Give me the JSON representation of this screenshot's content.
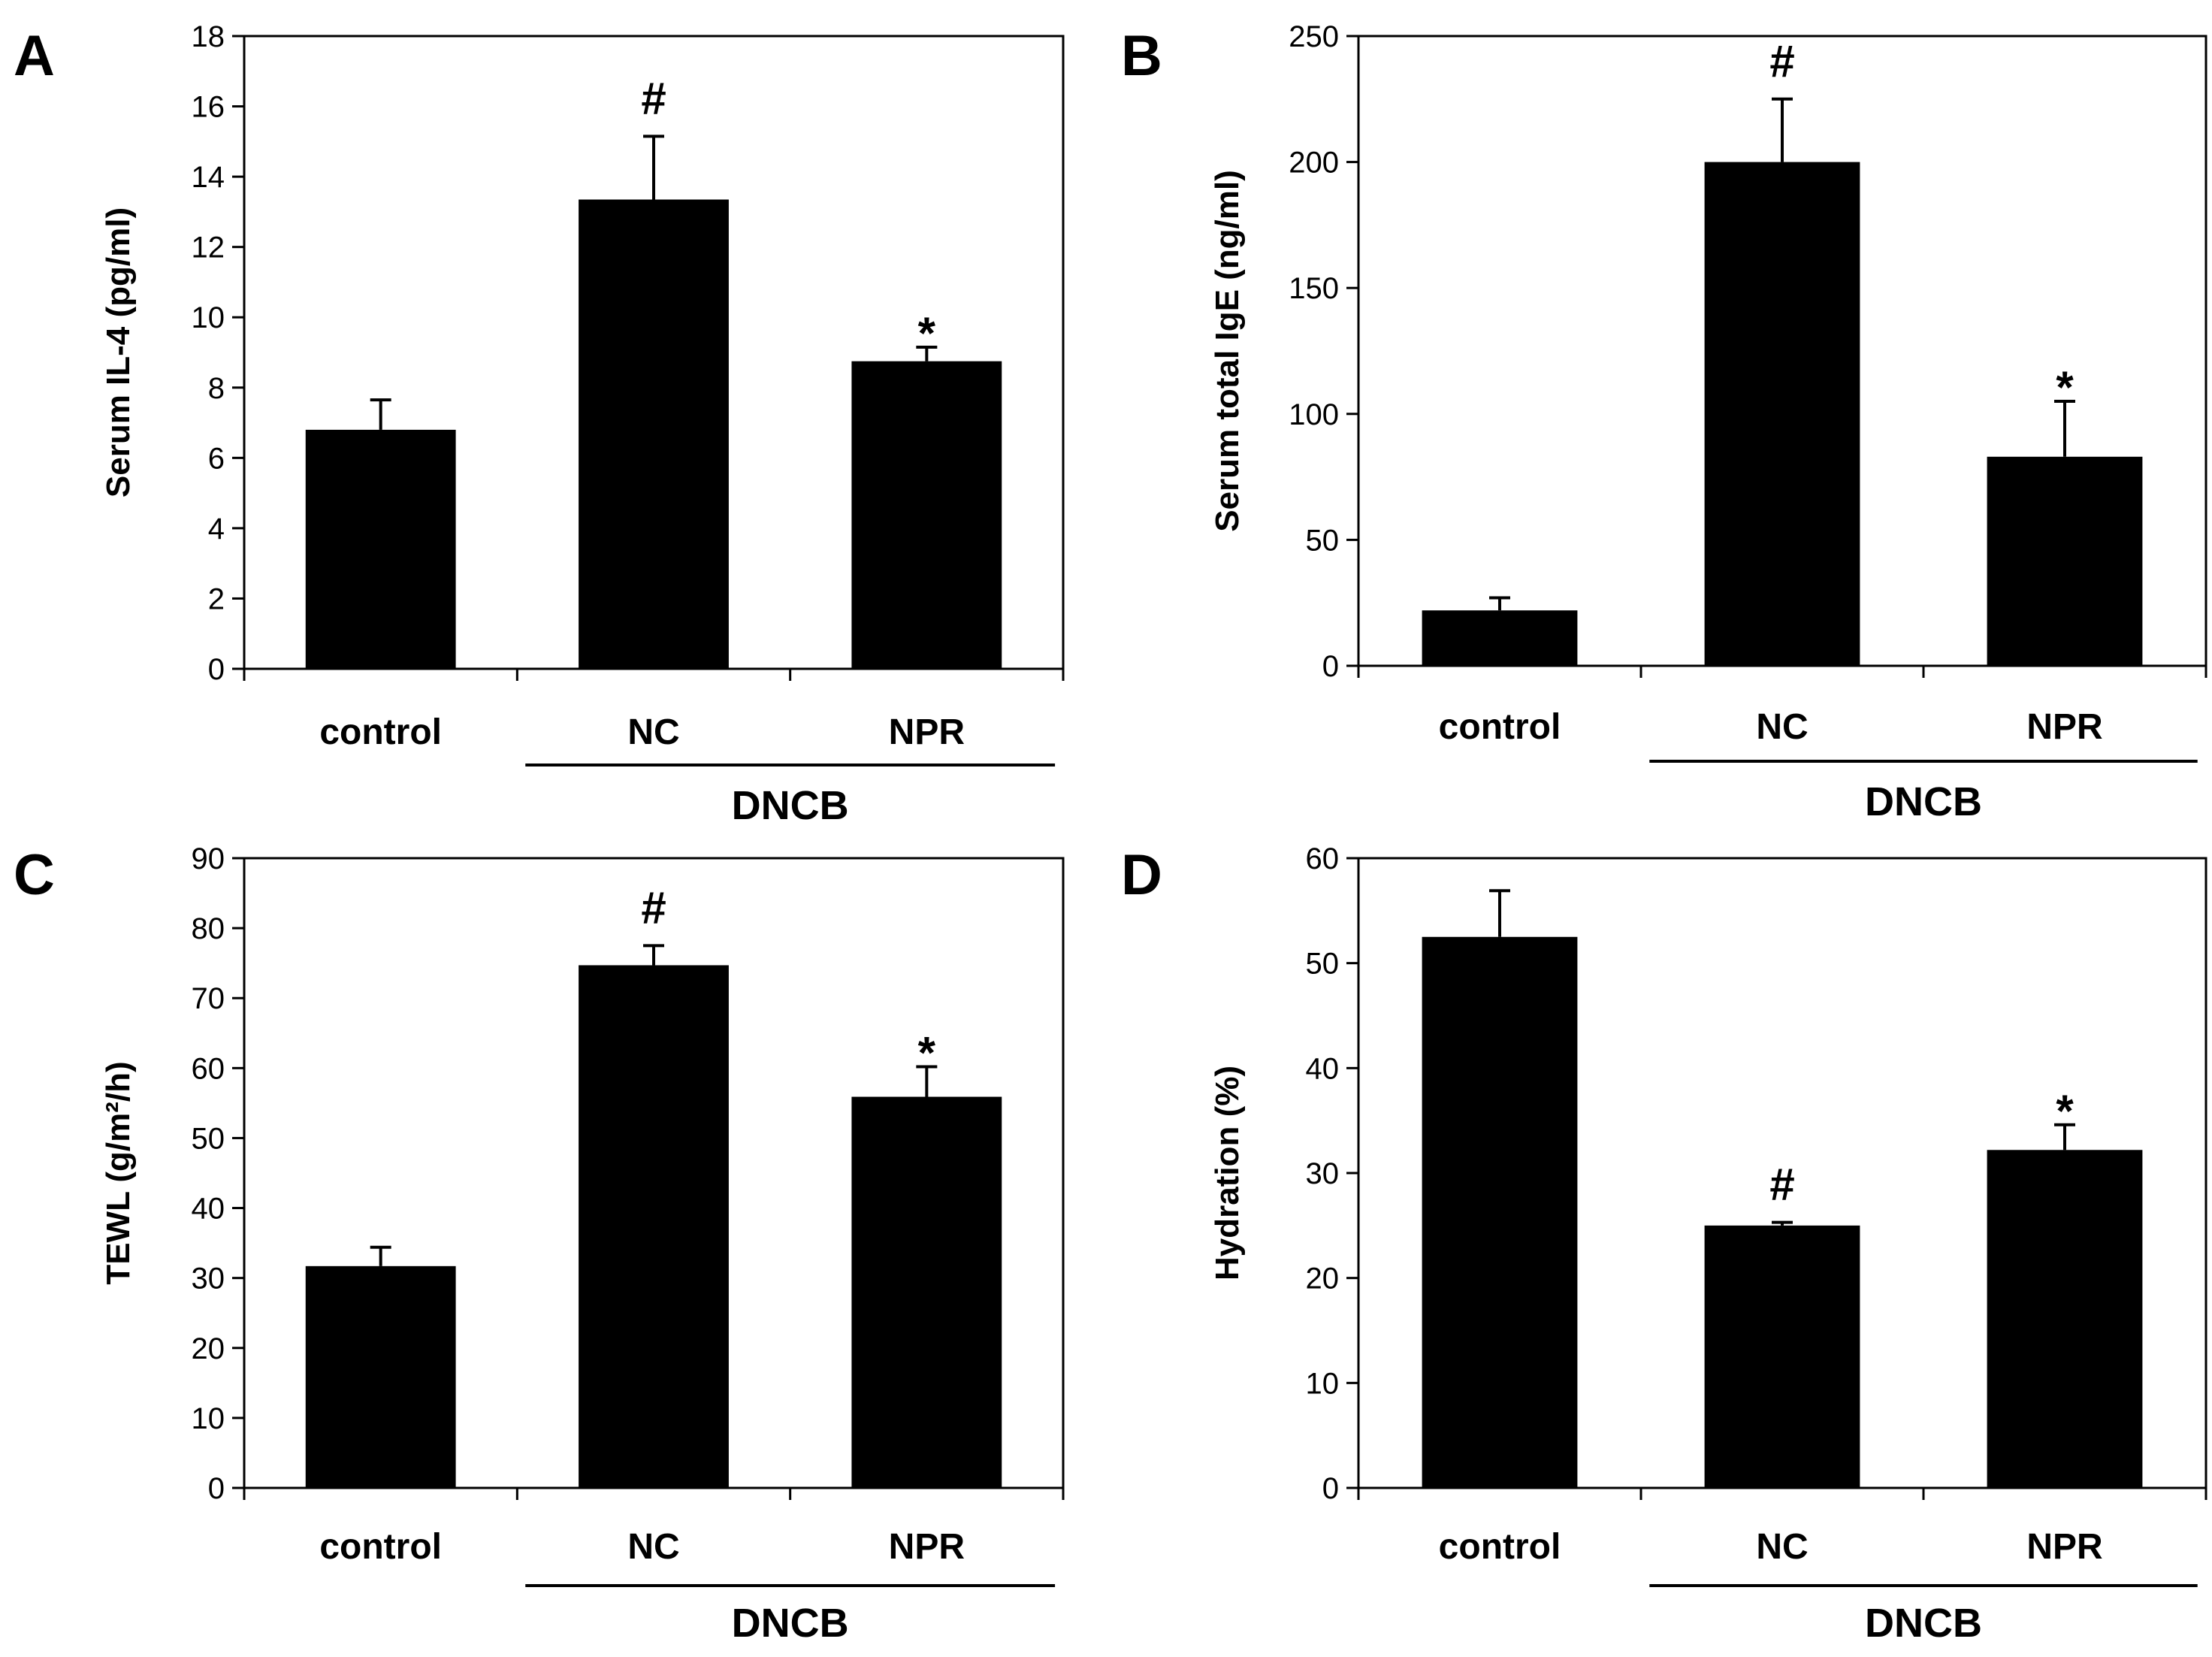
{
  "chart_data": [
    {
      "panel": "A",
      "type": "bar",
      "categories": [
        "control",
        "NC",
        "NPR"
      ],
      "values": [
        6.8,
        13.35,
        8.75
      ],
      "errors": [
        0.85,
        1.8,
        0.4
      ],
      "significance": [
        "",
        "#",
        "*"
      ],
      "ylabel": "Serum IL-4 (pg/ml)",
      "ylim": [
        0,
        18
      ],
      "yticks": [
        0,
        2,
        4,
        6,
        8,
        10,
        12,
        14,
        16,
        18
      ],
      "group_label": "DNCB",
      "group_members": [
        "NC",
        "NPR"
      ]
    },
    {
      "panel": "B",
      "type": "bar",
      "categories": [
        "control",
        "NC",
        "NPR"
      ],
      "values": [
        22,
        200,
        83
      ],
      "errors": [
        5,
        25,
        22
      ],
      "significance": [
        "",
        "#",
        "*"
      ],
      "ylabel": "Serum total IgE (ng/ml)",
      "ylim": [
        0,
        250
      ],
      "yticks": [
        0,
        50,
        100,
        150,
        200,
        250
      ],
      "group_label": "DNCB",
      "group_members": [
        "NC",
        "NPR"
      ]
    },
    {
      "panel": "C",
      "type": "bar",
      "categories": [
        "control",
        "NC",
        "NPR"
      ],
      "values": [
        31.7,
        74.7,
        55.9
      ],
      "errors": [
        2.7,
        2.8,
        4.3
      ],
      "significance": [
        "",
        "#",
        "*"
      ],
      "ylabel": "TEWL (g/m²/h)",
      "ylim": [
        0,
        90
      ],
      "yticks": [
        0,
        10,
        20,
        30,
        40,
        50,
        60,
        70,
        80,
        90
      ],
      "group_label": "DNCB",
      "group_members": [
        "NC",
        "NPR"
      ]
    },
    {
      "panel": "D",
      "type": "bar",
      "categories": [
        "control",
        "NC",
        "NPR"
      ],
      "values": [
        52.5,
        25,
        32.2
      ],
      "errors": [
        4.4,
        0.3,
        2.4
      ],
      "significance": [
        "",
        "#",
        "*"
      ],
      "ylabel": "Hydration (%)",
      "ylim": [
        0,
        60
      ],
      "yticks": [
        0,
        10,
        20,
        30,
        40,
        50,
        60
      ],
      "group_label": "DNCB",
      "group_members": [
        "NC",
        "NPR"
      ]
    }
  ]
}
